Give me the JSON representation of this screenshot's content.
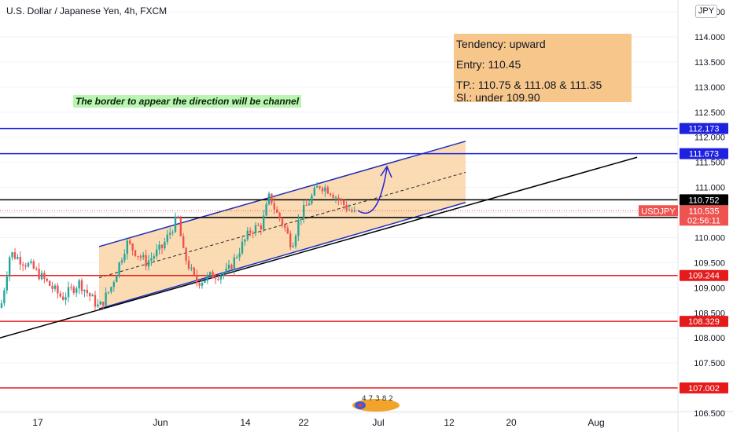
{
  "header": {
    "symbol_title": "U.S. Dollar / Japanese Yen, 4h, FXCM",
    "currency_button": "JPY"
  },
  "colors": {
    "up_candle": "#26a69a",
    "down_candle": "#ef5350",
    "channel_line": "#1f2fb5",
    "channel_fill": "#f9cf99",
    "support_line": "#000000",
    "resistance_blue": "#1e22e0",
    "red_level": "#e51b1b",
    "infobox_bg": "#f7c68a",
    "note_bg": "#b9f5b0"
  },
  "infobox": {
    "tendency": "Tendency: upward",
    "entry": "Entry: 110.45",
    "tp": "TP.: 110.75 & 111.08 & 111.35",
    "sl": "Sl.: under 109.90"
  },
  "note_text": "The border to appear the direction will be channel",
  "price_axis": {
    "ticks": [
      "106.500",
      "107.000",
      "107.500",
      "108.000",
      "108.500",
      "109.000",
      "109.500",
      "110.000",
      "110.500",
      "111.000",
      "111.500",
      "112.000",
      "112.500",
      "113.000",
      "113.500",
      "114.000",
      "114.500"
    ],
    "level_tags": [
      {
        "label": "112.173",
        "value": 112.173,
        "style": "blue"
      },
      {
        "label": "111.673",
        "value": 111.673,
        "style": "blue"
      },
      {
        "label": "110.752",
        "value": 110.752,
        "style": "black"
      },
      {
        "label": "110.400",
        "value": 110.4,
        "style": "black"
      },
      {
        "label": "109.244",
        "value": 109.244,
        "style": "red"
      },
      {
        "label": "108.329",
        "value": 108.329,
        "style": "red"
      },
      {
        "label": "107.002",
        "value": 107.002,
        "style": "red"
      }
    ],
    "last_price": {
      "symbol": "USDJPY",
      "price": "110.535",
      "countdown": "02:56:11",
      "value": 110.535
    }
  },
  "time_axis": {
    "labels": [
      "17",
      "Jun",
      "14",
      "22",
      "Jul",
      "12",
      "20",
      "Aug"
    ]
  },
  "watermark": {
    "digits": "4 7 3 8 2"
  },
  "chart_data": {
    "type": "candlestick",
    "title": "U.S. Dollar / Japanese Yen, 4h, FXCM",
    "ylim": [
      106.3,
      114.7
    ],
    "x_tick_labels": [
      "17",
      "Jun",
      "14",
      "22",
      "Jul",
      "12",
      "20",
      "Aug"
    ],
    "horizontal_levels": [
      112.173,
      111.673,
      110.752,
      110.4,
      109.244,
      108.329,
      107.002
    ],
    "last_price": 110.535,
    "channel": {
      "upper": [
        [
          126,
          109.82
        ],
        [
          592,
          111.92
        ]
      ],
      "lower": [
        [
          126,
          108.58
        ],
        [
          592,
          110.7
        ]
      ],
      "median": [
        [
          126,
          109.2
        ],
        [
          592,
          111.3
        ]
      ]
    },
    "support_trendline": [
      [
        0,
        108.0
      ],
      [
        810,
        111.6
      ]
    ],
    "projection_arrow": "upward",
    "anchors": [
      [
        0,
        108.6
      ],
      [
        12,
        109.7
      ],
      [
        40,
        109.4
      ],
      [
        78,
        108.8
      ],
      [
        100,
        109.1
      ],
      [
        125,
        108.6
      ],
      [
        140,
        109.0
      ],
      [
        160,
        109.9
      ],
      [
        185,
        109.5
      ],
      [
        205,
        109.8
      ],
      [
        225,
        110.4
      ],
      [
        232,
        109.7
      ],
      [
        248,
        109.1
      ],
      [
        270,
        109.25
      ],
      [
        288,
        109.3
      ],
      [
        305,
        109.8
      ],
      [
        318,
        110.15
      ],
      [
        332,
        110.25
      ],
      [
        342,
        110.85
      ],
      [
        350,
        110.5
      ],
      [
        358,
        110.3
      ],
      [
        370,
        109.85
      ],
      [
        380,
        110.4
      ],
      [
        395,
        110.8
      ],
      [
        405,
        111.05
      ],
      [
        418,
        110.95
      ],
      [
        430,
        110.75
      ],
      [
        440,
        110.6
      ],
      [
        452,
        110.45
      ]
    ]
  }
}
